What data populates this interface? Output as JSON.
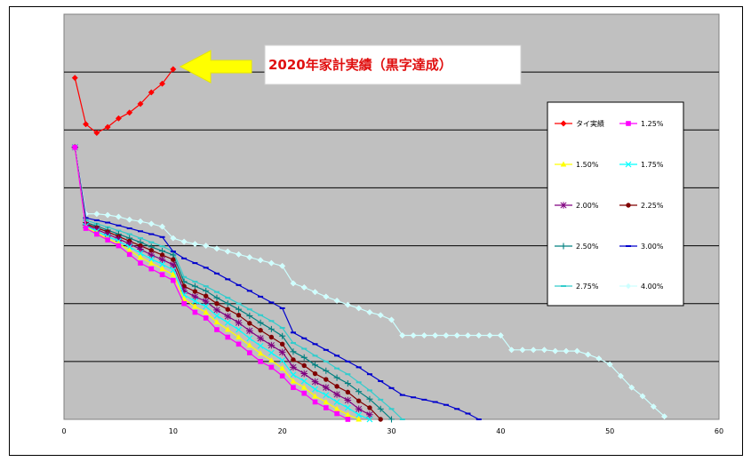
{
  "chart_data": {
    "type": "line",
    "title": "",
    "xlabel": "",
    "ylabel": "",
    "xlim": [
      0,
      60
    ],
    "ylim": [
      0,
      7
    ],
    "x_ticks": [
      "0",
      "10",
      "20",
      "30",
      "40",
      "50",
      "60"
    ],
    "grid": true,
    "legend_position": "right",
    "annotation": "2020年家計実績（黒字達成）",
    "series": [
      {
        "name": "タイ実績",
        "color": "#ff0000",
        "marker": "diamond",
        "x": [
          1,
          2,
          3,
          4,
          5,
          6,
          7,
          8,
          9,
          10
        ],
        "y": [
          5.9,
          5.1,
          4.95,
          5.05,
          5.2,
          5.3,
          5.45,
          5.65,
          5.8,
          6.05
        ]
      },
      {
        "name": "1.25%",
        "color": "#ff00ff",
        "marker": "square",
        "x": [
          1,
          2,
          3,
          4,
          5,
          6,
          7,
          8,
          9,
          10,
          11,
          12,
          13,
          14,
          15,
          16,
          17,
          18,
          19,
          20,
          21,
          22,
          23,
          24,
          25,
          26
        ],
        "y": [
          4.7,
          3.3,
          3.2,
          3.1,
          3.0,
          2.85,
          2.7,
          2.6,
          2.5,
          2.4,
          2.0,
          1.85,
          1.75,
          1.55,
          1.42,
          1.3,
          1.15,
          1.0,
          0.9,
          0.75,
          0.55,
          0.45,
          0.3,
          0.2,
          0.1,
          0.0
        ]
      },
      {
        "name": "1.50%",
        "color": "#ffff00",
        "marker": "triangle",
        "x": [
          1,
          2,
          3,
          4,
          5,
          6,
          7,
          8,
          9,
          10,
          11,
          12,
          13,
          14,
          15,
          16,
          17,
          18,
          19,
          20,
          21,
          22,
          23,
          24,
          25,
          26,
          27
        ],
        "y": [
          4.7,
          3.32,
          3.22,
          3.12,
          3.04,
          2.92,
          2.8,
          2.7,
          2.6,
          2.5,
          2.08,
          1.95,
          1.85,
          1.68,
          1.55,
          1.42,
          1.28,
          1.14,
          1.02,
          0.88,
          0.66,
          0.55,
          0.4,
          0.3,
          0.18,
          0.08,
          0.0
        ]
      },
      {
        "name": "1.75%",
        "color": "#00ffff",
        "marker": "x",
        "x": [
          1,
          2,
          3,
          4,
          5,
          6,
          7,
          8,
          9,
          10,
          11,
          12,
          13,
          14,
          15,
          16,
          17,
          18,
          19,
          20,
          21,
          22,
          23,
          24,
          25,
          26,
          27,
          28
        ],
        "y": [
          4.7,
          3.34,
          3.25,
          3.16,
          3.08,
          2.98,
          2.87,
          2.77,
          2.68,
          2.58,
          2.15,
          2.04,
          1.95,
          1.79,
          1.67,
          1.55,
          1.4,
          1.27,
          1.15,
          1.02,
          0.77,
          0.66,
          0.52,
          0.42,
          0.3,
          0.2,
          0.08,
          0.0
        ]
      },
      {
        "name": "2.00%",
        "color": "#800080",
        "marker": "star",
        "x": [
          1,
          2,
          3,
          4,
          5,
          6,
          7,
          8,
          9,
          10,
          11,
          12,
          13,
          14,
          15,
          16,
          17,
          18,
          19,
          20,
          21,
          22,
          23,
          24,
          25,
          26,
          27,
          28
        ],
        "y": [
          4.7,
          3.36,
          3.28,
          3.2,
          3.12,
          3.03,
          2.94,
          2.84,
          2.76,
          2.67,
          2.22,
          2.12,
          2.04,
          1.89,
          1.78,
          1.67,
          1.53,
          1.4,
          1.28,
          1.16,
          0.9,
          0.79,
          0.65,
          0.55,
          0.43,
          0.33,
          0.18,
          0.08
        ]
      },
      {
        "name": "2.25%",
        "color": "#800000",
        "marker": "circle",
        "x": [
          1,
          2,
          3,
          4,
          5,
          6,
          7,
          8,
          9,
          10,
          11,
          12,
          13,
          14,
          15,
          16,
          17,
          18,
          19,
          20,
          21,
          22,
          23,
          24,
          25,
          26,
          27,
          28,
          29
        ],
        "y": [
          4.7,
          3.38,
          3.31,
          3.24,
          3.16,
          3.08,
          3.0,
          2.92,
          2.84,
          2.76,
          2.3,
          2.21,
          2.13,
          2.0,
          1.9,
          1.8,
          1.66,
          1.54,
          1.42,
          1.3,
          1.03,
          0.93,
          0.79,
          0.69,
          0.57,
          0.47,
          0.32,
          0.2,
          0.0
        ]
      },
      {
        "name": "2.50%",
        "color": "#008080",
        "marker": "plus",
        "x": [
          1,
          2,
          3,
          4,
          5,
          6,
          7,
          8,
          9,
          10,
          11,
          12,
          13,
          14,
          15,
          16,
          17,
          18,
          19,
          20,
          21,
          22,
          23,
          24,
          25,
          26,
          27,
          28,
          29,
          30
        ],
        "y": [
          4.7,
          3.4,
          3.34,
          3.27,
          3.2,
          3.13,
          3.06,
          2.98,
          2.91,
          2.84,
          2.38,
          2.3,
          2.22,
          2.1,
          2.0,
          1.9,
          1.79,
          1.67,
          1.56,
          1.44,
          1.17,
          1.07,
          0.94,
          0.84,
          0.72,
          0.62,
          0.48,
          0.35,
          0.18,
          0.0
        ]
      },
      {
        "name": "3.00%",
        "color": "#0000cc",
        "marker": "dash",
        "x": [
          1,
          2,
          3,
          4,
          5,
          6,
          7,
          8,
          9,
          10,
          11,
          12,
          13,
          14,
          15,
          16,
          17,
          18,
          19,
          20,
          21,
          22,
          23,
          24,
          25,
          26,
          27,
          28,
          29,
          30,
          31,
          32,
          33,
          34,
          35,
          36,
          37,
          38
        ],
        "y": [
          4.7,
          3.48,
          3.44,
          3.4,
          3.35,
          3.3,
          3.25,
          3.2,
          3.15,
          2.9,
          2.78,
          2.7,
          2.62,
          2.52,
          2.42,
          2.32,
          2.22,
          2.12,
          2.02,
          1.92,
          1.5,
          1.4,
          1.3,
          1.2,
          1.1,
          1.0,
          0.9,
          0.78,
          0.66,
          0.54,
          0.42,
          0.38,
          0.34,
          0.3,
          0.25,
          0.18,
          0.1,
          0.0
        ]
      },
      {
        "name": "2.75%",
        "color": "#33cccc",
        "marker": "dash",
        "x": [
          1,
          2,
          3,
          4,
          5,
          6,
          7,
          8,
          9,
          10,
          11,
          12,
          13,
          14,
          15,
          16,
          17,
          18,
          19,
          20,
          21,
          22,
          23,
          24,
          25,
          26,
          27,
          28,
          29,
          30,
          31
        ],
        "y": [
          4.7,
          3.44,
          3.38,
          3.32,
          3.26,
          3.2,
          3.13,
          3.06,
          2.99,
          2.9,
          2.46,
          2.38,
          2.3,
          2.2,
          2.1,
          2.0,
          1.9,
          1.8,
          1.7,
          1.58,
          1.32,
          1.22,
          1.1,
          1.0,
          0.88,
          0.78,
          0.64,
          0.5,
          0.34,
          0.18,
          0.0
        ]
      },
      {
        "name": "4.00%",
        "color": "#ccffff",
        "marker": "diamond",
        "x": [
          1,
          2,
          3,
          4,
          5,
          6,
          7,
          8,
          9,
          10,
          11,
          12,
          13,
          14,
          15,
          16,
          17,
          18,
          19,
          20,
          21,
          22,
          23,
          24,
          25,
          26,
          27,
          28,
          29,
          30,
          31,
          32,
          33,
          34,
          35,
          36,
          37,
          38,
          39,
          40,
          41,
          42,
          43,
          44,
          45,
          46,
          47,
          48,
          49,
          50,
          51,
          52,
          53,
          54,
          55
        ],
        "y": [
          4.7,
          3.55,
          3.55,
          3.53,
          3.5,
          3.45,
          3.42,
          3.38,
          3.33,
          3.13,
          3.07,
          3.03,
          3.0,
          2.95,
          2.9,
          2.85,
          2.8,
          2.75,
          2.7,
          2.65,
          2.35,
          2.28,
          2.2,
          2.12,
          2.05,
          1.98,
          1.92,
          1.85,
          1.8,
          1.72,
          1.45,
          1.45,
          1.45,
          1.45,
          1.45,
          1.45,
          1.45,
          1.45,
          1.45,
          1.45,
          1.2,
          1.2,
          1.2,
          1.2,
          1.18,
          1.18,
          1.18,
          1.12,
          1.05,
          0.95,
          0.75,
          0.55,
          0.4,
          0.22,
          0.05
        ]
      }
    ]
  }
}
